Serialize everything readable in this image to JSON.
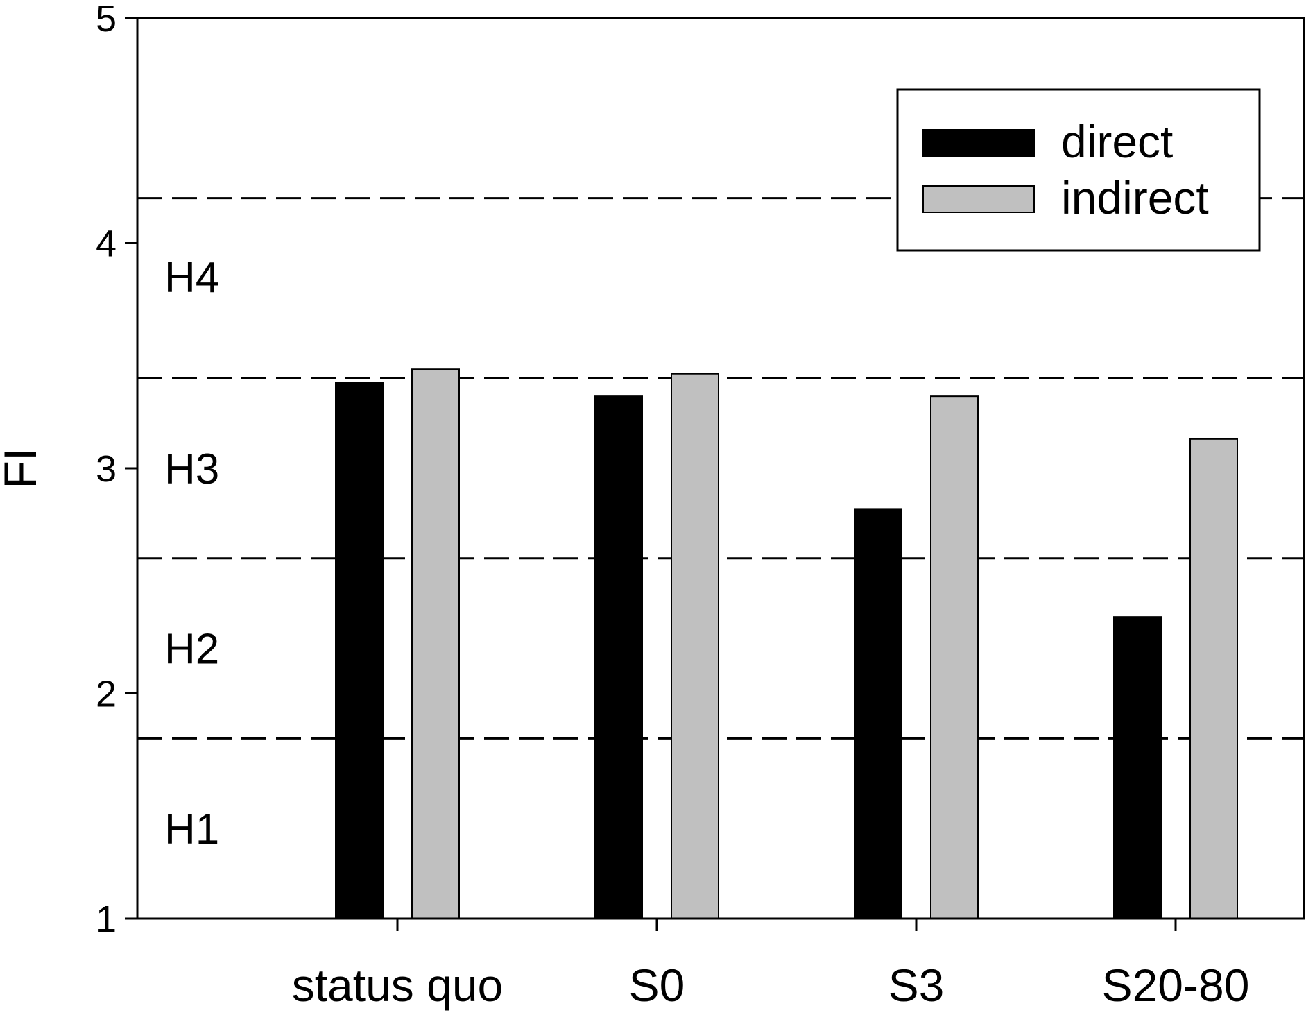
{
  "chart_data": {
    "type": "bar",
    "title": "",
    "xlabel": "",
    "ylabel": "FI",
    "ylim": [
      1,
      5
    ],
    "yticks": [
      "1",
      "2",
      "3",
      "4",
      "5"
    ],
    "categories": [
      "status quo",
      "S0",
      "S3",
      "S20-80"
    ],
    "series": [
      {
        "name": "direct",
        "color": "#000000",
        "values": [
          3.38,
          3.32,
          2.82,
          2.34
        ]
      },
      {
        "name": "indirect",
        "color": "#c0c0c0",
        "values": [
          3.44,
          3.42,
          3.32,
          3.13
        ]
      }
    ],
    "reference_lines": {
      "style": "dashed",
      "values": [
        1.8,
        2.6,
        3.4,
        4.2
      ]
    },
    "zones": [
      {
        "label": "H1",
        "y": 1.4
      },
      {
        "label": "H2",
        "y": 2.2
      },
      {
        "label": "H3",
        "y": 3.0
      },
      {
        "label": "H4",
        "y": 3.85
      }
    ],
    "legend": {
      "placement": "top-right"
    },
    "grid": false
  }
}
